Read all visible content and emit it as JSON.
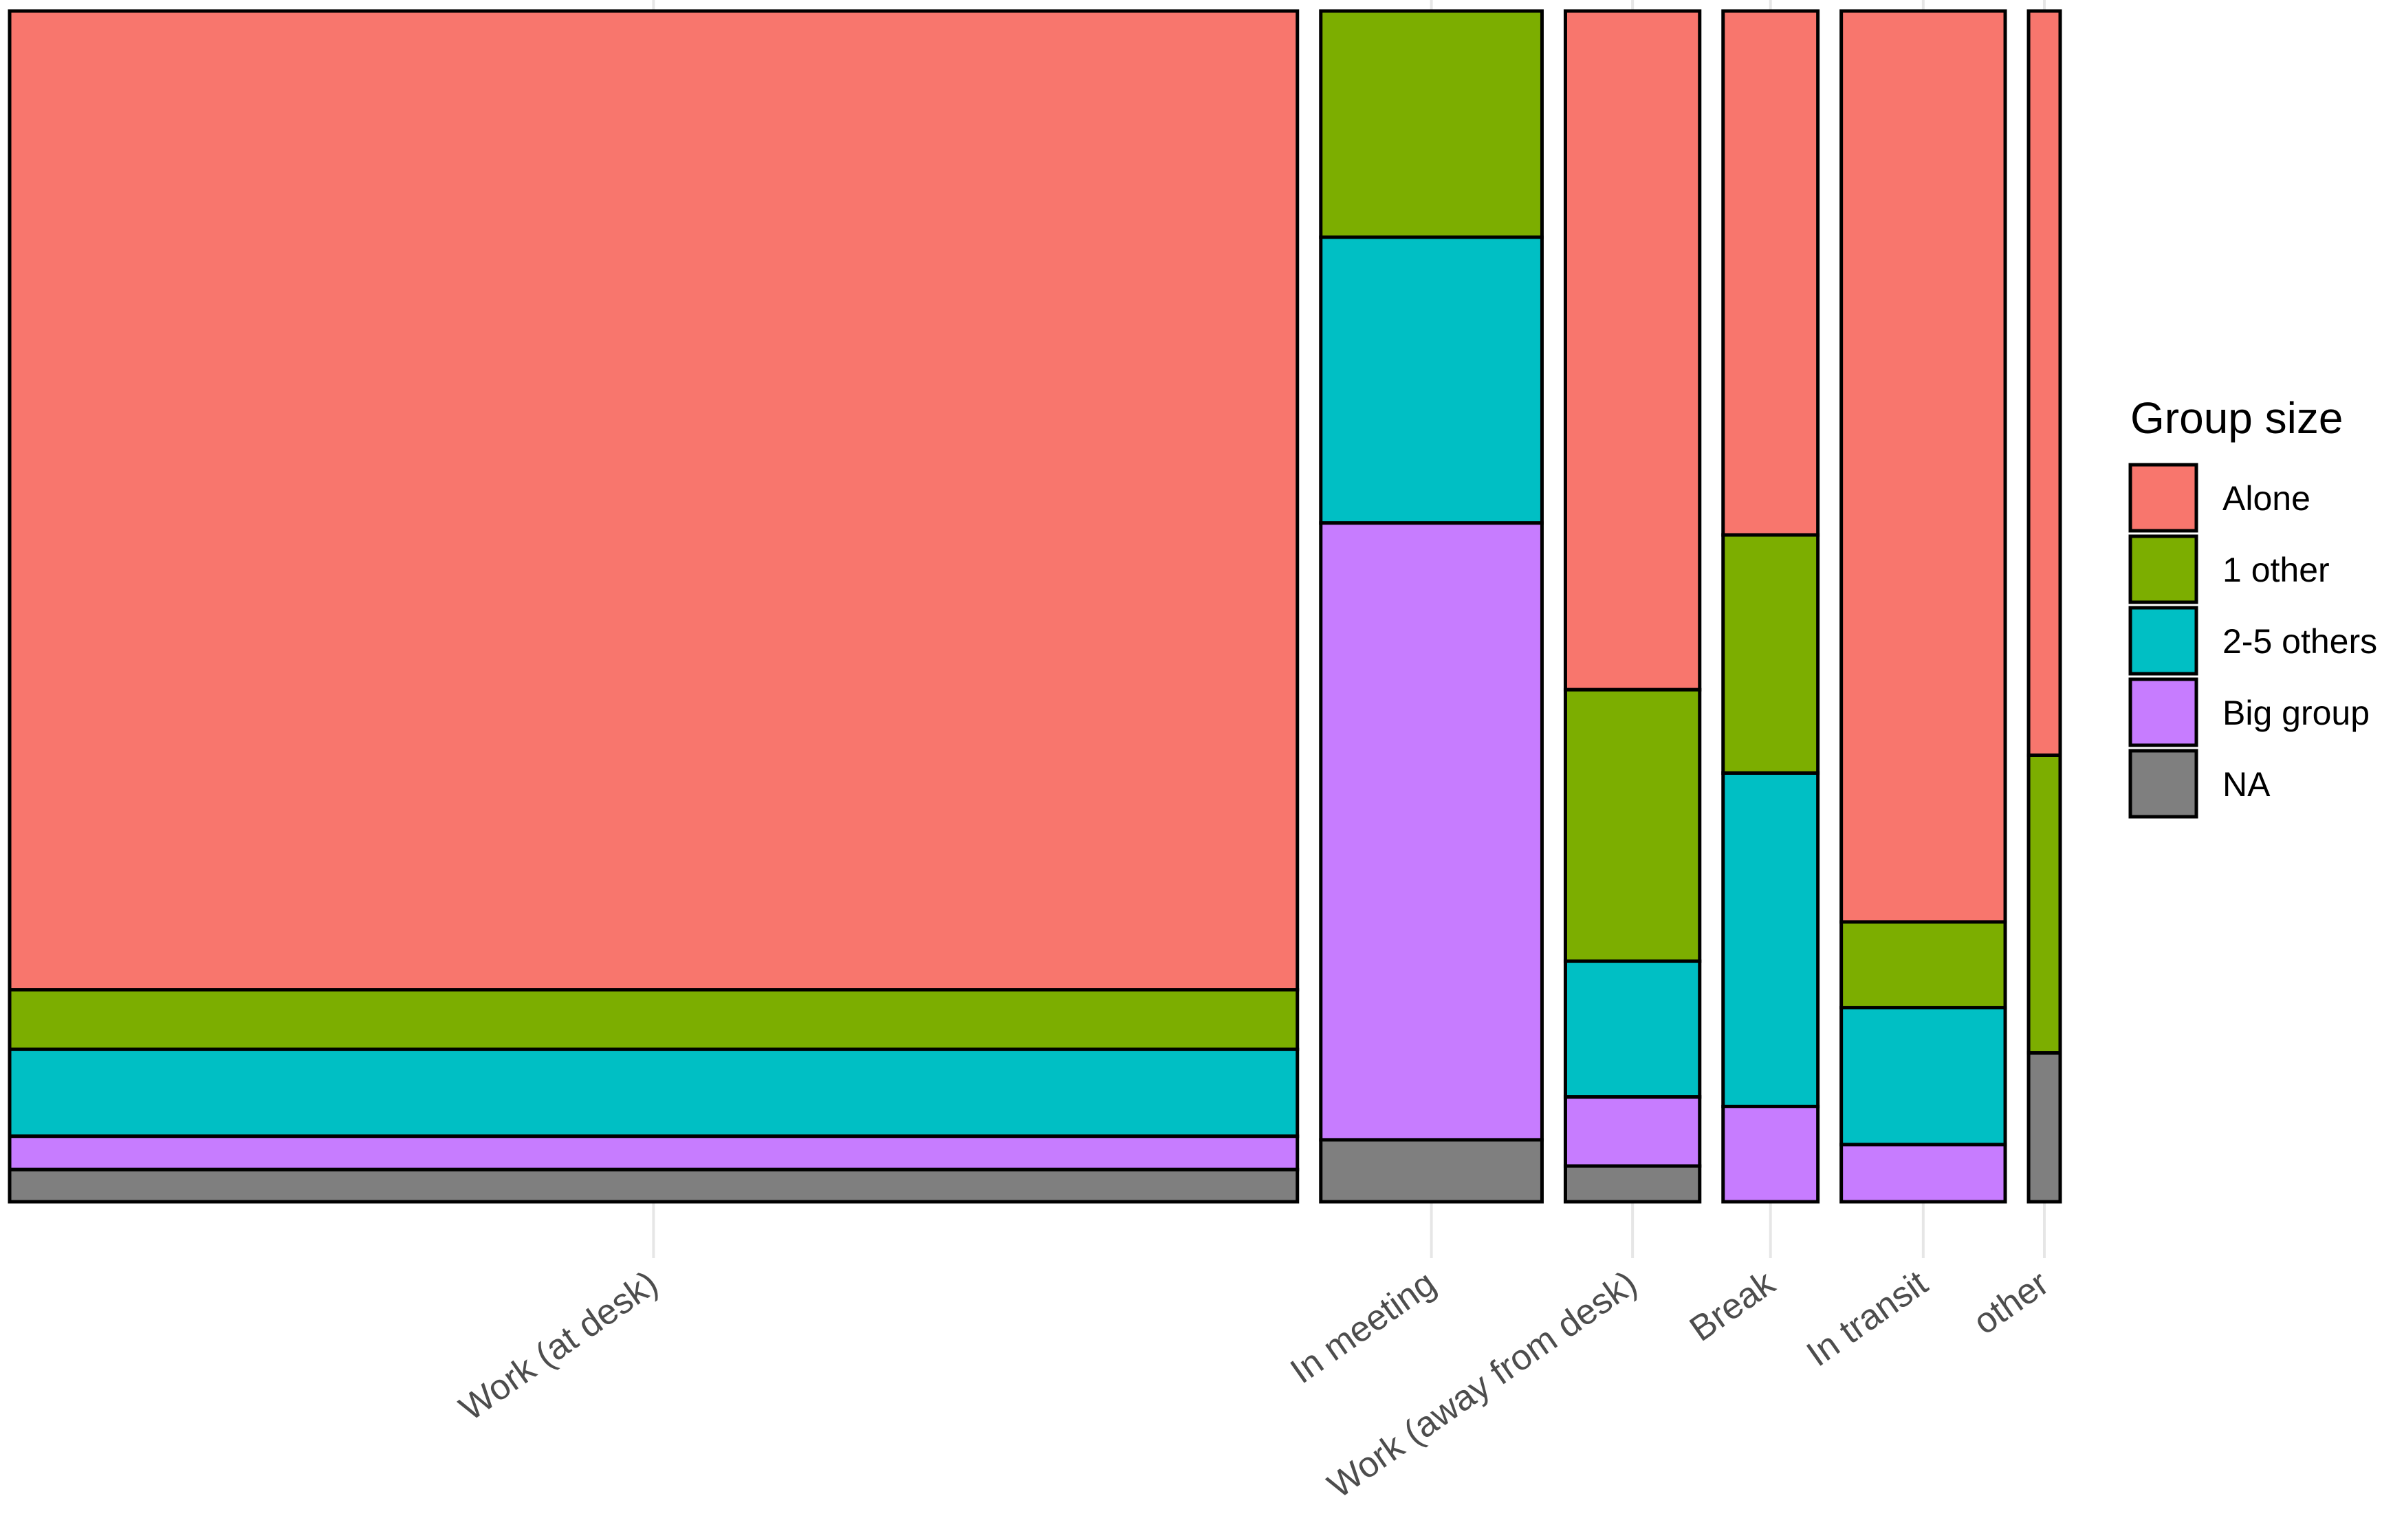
{
  "chart_data": {
    "type": "bar",
    "subtype": "mosaic",
    "title": "",
    "xlabel": "",
    "ylabel": "",
    "categories": [
      "Work (at desk)",
      "In meeting",
      "Work (away from desk)",
      "Break",
      "In transit",
      "other"
    ],
    "category_share": [
      0.652,
      0.112,
      0.068,
      0.048,
      0.083,
      0.016
    ],
    "series": [
      {
        "name": "Alone",
        "color": "#F8766D",
        "values": [
          0.822,
          0.0,
          0.57,
          0.44,
          0.765,
          0.625
        ]
      },
      {
        "name": "1 other",
        "color": "#7CAE00",
        "values": [
          0.05,
          0.19,
          0.228,
          0.2,
          0.072,
          0.25
        ]
      },
      {
        "name": "2-5 others",
        "color": "#00BFC4",
        "values": [
          0.073,
          0.24,
          0.114,
          0.28,
          0.115,
          0.0
        ]
      },
      {
        "name": "Big group",
        "color": "#C77CFF",
        "values": [
          0.028,
          0.518,
          0.058,
          0.08,
          0.048,
          0.0
        ]
      },
      {
        "name": "NA",
        "color": "#7F7F7F",
        "values": [
          0.027,
          0.052,
          0.03,
          0.0,
          0.0,
          0.125
        ]
      }
    ],
    "ylim": [
      0,
      1
    ],
    "grid": true,
    "legend": {
      "title": "Group size",
      "position": "right"
    }
  }
}
